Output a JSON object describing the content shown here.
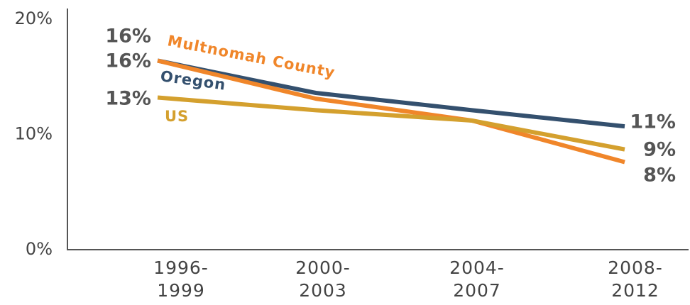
{
  "chart_data": {
    "type": "line",
    "categories": [
      "1996-1999",
      "2000-2003",
      "2004-2007",
      "2008-2012"
    ],
    "series": [
      {
        "name": "Oregon",
        "color": "#34506e",
        "values": [
          16.4,
          13.6,
          12.1,
          10.7
        ],
        "value_labels": [
          "16%",
          null,
          null,
          "11%"
        ]
      },
      {
        "name": "Multnomah County",
        "color": "#f0862a",
        "values": [
          16.4,
          13.1,
          11.2,
          7.6
        ],
        "value_labels": [
          "16%",
          null,
          null,
          "8%"
        ]
      },
      {
        "name": "US",
        "color": "#d4a02e",
        "values": [
          13.2,
          12.1,
          11.2,
          8.7
        ],
        "value_labels": [
          "13%",
          null,
          null,
          "9%"
        ]
      }
    ],
    "ylim": [
      0,
      20
    ],
    "yticks": [
      {
        "value": 0,
        "label": "0%"
      },
      {
        "value": 10,
        "label": "10%"
      },
      {
        "value": 20,
        "label": "20%"
      }
    ]
  }
}
